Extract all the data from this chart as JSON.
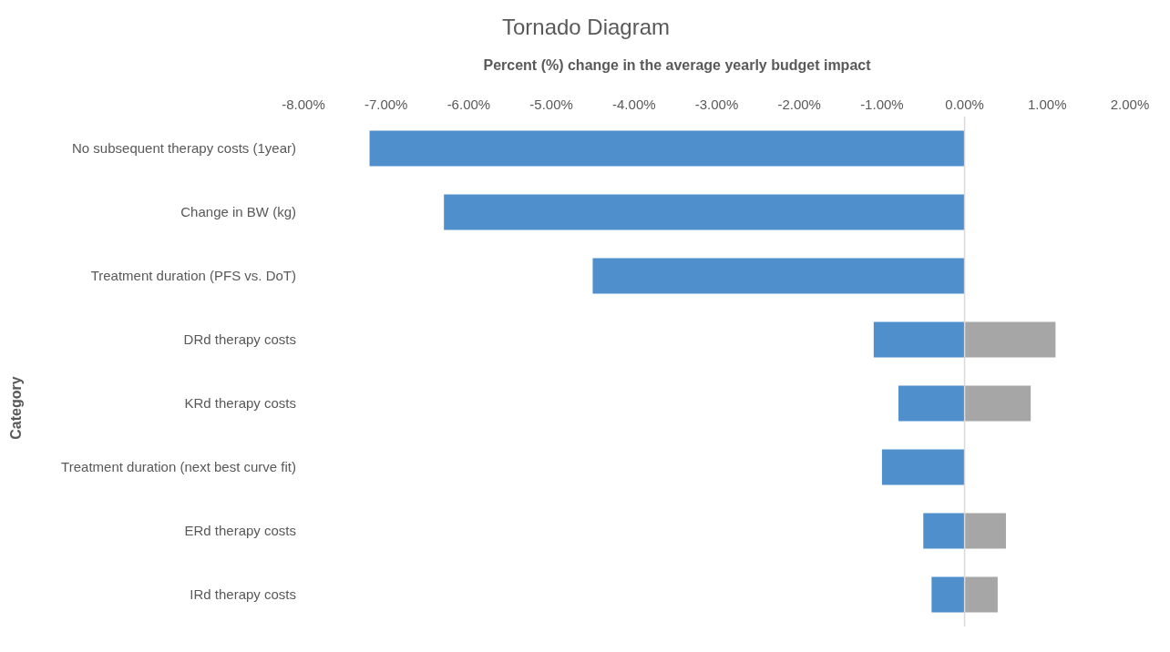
{
  "chart_data": {
    "type": "bar",
    "orientation": "horizontal",
    "stacked": true,
    "title": "Tornado Diagram",
    "xlabel": "Percent (%) change in the average yearly budget impact",
    "ylabel": "Category",
    "categories": [
      "No subsequent therapy costs (1year)",
      "Change in BW (kg)",
      "Treatment duration (PFS vs. DoT)",
      "DRd therapy costs",
      "KRd therapy costs",
      "Treatment duration (next best curve fit)",
      "ERd therapy costs",
      "IRd therapy costs"
    ],
    "series": [
      {
        "color": "#4f8fcc",
        "values": [
          -7.2,
          -6.3,
          -4.5,
          -1.1,
          -0.8,
          -1.0,
          -0.5,
          -0.4
        ]
      },
      {
        "color": "#a6a6a6",
        "values": [
          null,
          null,
          null,
          1.1,
          0.8,
          null,
          0.5,
          0.4
        ]
      }
    ],
    "xlim": [
      -8,
      2
    ],
    "xticks": [
      {
        "value": -8,
        "label": "-8.00%"
      },
      {
        "value": -7,
        "label": "-7.00%"
      },
      {
        "value": -6,
        "label": "-6.00%"
      },
      {
        "value": -5,
        "label": "-5.00%"
      },
      {
        "value": -4,
        "label": "-4.00%"
      },
      {
        "value": -3,
        "label": "-3.00%"
      },
      {
        "value": -2,
        "label": "-2.00%"
      },
      {
        "value": -1,
        "label": "-1.00%"
      },
      {
        "value": 0,
        "label": "0.00%"
      },
      {
        "value": 1,
        "label": "1.00%"
      },
      {
        "value": 2,
        "label": "2.00%"
      }
    ],
    "ref_lines": [
      {
        "axis": "x",
        "value": 0,
        "color": "#d9d9d9"
      }
    ],
    "grid": false,
    "legend": false
  }
}
